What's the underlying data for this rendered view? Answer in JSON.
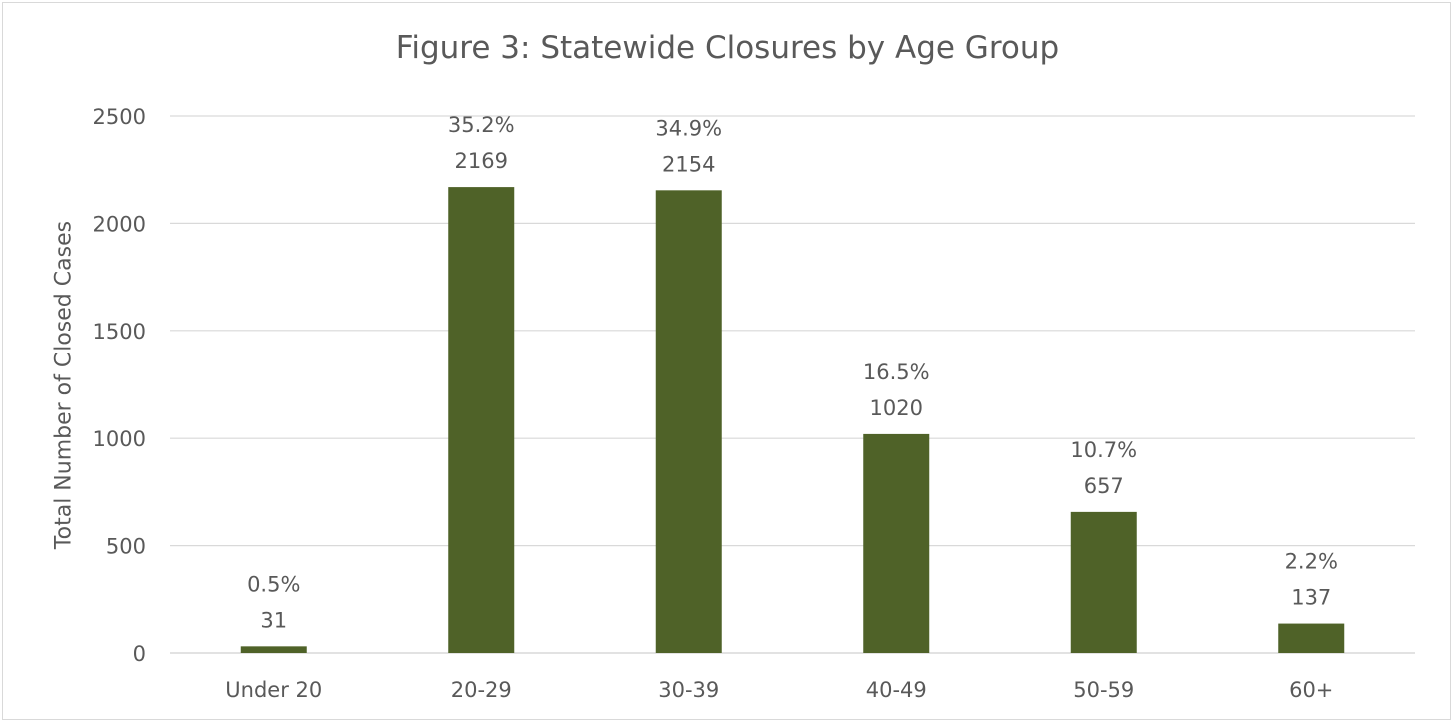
{
  "chart_data": {
    "type": "bar",
    "title": "Figure 3:  Statewide Closures by Age Group",
    "xlabel": "",
    "ylabel": "Total Number of Closed Cases",
    "ylim": [
      0,
      2500
    ],
    "yticks": [
      0,
      500,
      1000,
      1500,
      2000,
      2500
    ],
    "grid": true,
    "categories": [
      "Under 20",
      "20-29",
      "30-39",
      "40-49",
      "50-59",
      "60+"
    ],
    "values": [
      31,
      2169,
      2154,
      1020,
      657,
      137
    ],
    "value_labels": [
      "31",
      "2169",
      "2154",
      "1020",
      "657",
      "137"
    ],
    "percent_labels": [
      "0.5%",
      "35.2%",
      "34.9%",
      "16.5%",
      "10.7%",
      "2.2%"
    ],
    "bar_color": "#4f6228",
    "grid_color": "#d9d9d9"
  }
}
